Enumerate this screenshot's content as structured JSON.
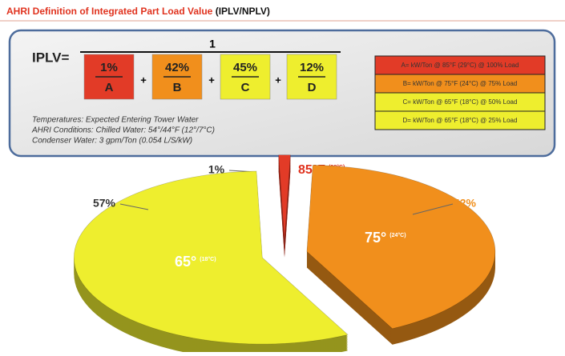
{
  "header": {
    "title": "AHRI Definition of Integrated Part Load Value",
    "subtitle": "(IPLV/NPLV)"
  },
  "formula": {
    "lhs": "IPLV=",
    "numerator": "1",
    "operator": "+",
    "terms": [
      {
        "weight": "1%",
        "letter": "A",
        "color": "#e23b27"
      },
      {
        "weight": "42%",
        "letter": "B",
        "color": "#f18f1c"
      },
      {
        "weight": "45%",
        "letter": "C",
        "color": "#eeee2e"
      },
      {
        "weight": "12%",
        "letter": "D",
        "color": "#eeee2e"
      }
    ]
  },
  "legend": {
    "rows": [
      {
        "text": "A= kW/Ton @ 85°F (29°C) @ 100% Load",
        "color": "#e23b27"
      },
      {
        "text": "B= kW/Ton @ 75°F (24°C) @ 75% Load",
        "color": "#f18f1c"
      },
      {
        "text": "C= kW/Ton @ 65°F (18°C) @ 50% Load",
        "color": "#eeee2e"
      },
      {
        "text": "D= kW/Ton @ 65°F (18°C) @ 25% Load",
        "color": "#eeee2e"
      }
    ]
  },
  "notes": [
    "Temperatures: Expected Entering Tower Water",
    "AHRI Conditions: Chilled Water: 54°/44°F (12°/7°C)",
    "Condenser Water: 3 gpm/Ton (0.054 L/S/kW)"
  ],
  "chart_data": {
    "type": "pie",
    "categories": [
      "85°F",
      "75°",
      "65°"
    ],
    "sublabels": [
      "(29°C)",
      "(24°C)",
      "(18°C)"
    ],
    "values": [
      1,
      42,
      57
    ],
    "value_labels": [
      "1%",
      "42%",
      "57%"
    ],
    "colors": [
      "#e23b27",
      "#f18f1c",
      "#eeee2e"
    ]
  }
}
